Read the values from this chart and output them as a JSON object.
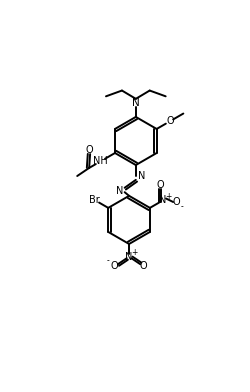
{
  "bg_color": "#ffffff",
  "line_color": "#000000",
  "line_width": 1.4,
  "font_size": 7.0,
  "fig_width": 2.5,
  "fig_height": 3.92,
  "xlim": [
    0,
    10
  ],
  "ylim": [
    0,
    15.68
  ]
}
